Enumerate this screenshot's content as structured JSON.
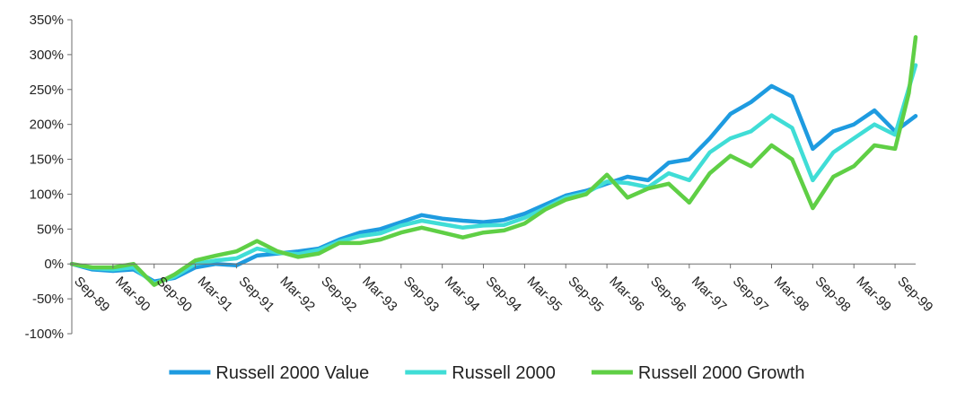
{
  "colors": {
    "value": "#1E9BE0",
    "russell2000": "#40DDD6",
    "growth": "#5FCF45",
    "axis": "#6E6E6E",
    "text": "#222222"
  },
  "chart_data": {
    "type": "line",
    "title": "",
    "xlabel": "",
    "ylabel": "",
    "ylim": [
      -100,
      350
    ],
    "y_unit": "%",
    "grid": false,
    "legend_position": "bottom",
    "y_ticks": [
      350,
      300,
      250,
      200,
      150,
      100,
      50,
      0,
      -50,
      -100
    ],
    "y_tick_labels": [
      "350%",
      "300%",
      "250%",
      "200%",
      "150%",
      "100%",
      "50%",
      "0%",
      "-50%",
      "-100%"
    ],
    "x_tick_labels": [
      "Sep-89",
      "Mar-90",
      "Sep-90",
      "Mar-91",
      "Sep-91",
      "Mar-92",
      "Sep-92",
      "Mar-93",
      "Sep-93",
      "Mar-94",
      "Sep-94",
      "Mar-95",
      "Sep-95",
      "Mar-96",
      "Sep-96",
      "Mar-97",
      "Sep-97",
      "Mar-98",
      "Sep-98",
      "Mar-99",
      "Sep-99"
    ],
    "x_ticks": [
      "1989-09",
      "1990-03",
      "1990-09",
      "1991-03",
      "1991-09",
      "1992-03",
      "1992-09",
      "1993-03",
      "1993-09",
      "1994-03",
      "1994-09",
      "1995-03",
      "1995-09",
      "1996-03",
      "1996-09",
      "1997-03",
      "1997-09",
      "1998-03",
      "1998-09",
      "1999-03",
      "1999-09"
    ],
    "x_range": [
      "1989-09",
      "1999-12"
    ],
    "series": [
      {
        "name": "Russell 2000 Value",
        "color_key": "value",
        "points": [
          [
            "1989-09",
            0
          ],
          [
            "1989-12",
            -8
          ],
          [
            "1990-03",
            -10
          ],
          [
            "1990-06",
            -8
          ],
          [
            "1990-09",
            -25
          ],
          [
            "1990-12",
            -20
          ],
          [
            "1991-03",
            -5
          ],
          [
            "1991-06",
            0
          ],
          [
            "1991-09",
            -2
          ],
          [
            "1991-12",
            12
          ],
          [
            "1992-03",
            15
          ],
          [
            "1992-06",
            18
          ],
          [
            "1992-09",
            22
          ],
          [
            "1992-12",
            35
          ],
          [
            "1993-03",
            45
          ],
          [
            "1993-06",
            50
          ],
          [
            "1993-09",
            60
          ],
          [
            "1993-12",
            70
          ],
          [
            "1994-03",
            65
          ],
          [
            "1994-06",
            62
          ],
          [
            "1994-09",
            60
          ],
          [
            "1994-12",
            63
          ],
          [
            "1995-03",
            72
          ],
          [
            "1995-06",
            85
          ],
          [
            "1995-09",
            98
          ],
          [
            "1995-12",
            105
          ],
          [
            "1996-03",
            115
          ],
          [
            "1996-06",
            125
          ],
          [
            "1996-09",
            120
          ],
          [
            "1996-12",
            145
          ],
          [
            "1997-03",
            150
          ],
          [
            "1997-06",
            180
          ],
          [
            "1997-09",
            215
          ],
          [
            "1997-12",
            232
          ],
          [
            "1998-03",
            255
          ],
          [
            "1998-06",
            240
          ],
          [
            "1998-09",
            165
          ],
          [
            "1998-12",
            190
          ],
          [
            "1999-03",
            200
          ],
          [
            "1999-06",
            220
          ],
          [
            "1999-09",
            190
          ],
          [
            "1999-12",
            212
          ]
        ]
      },
      {
        "name": "Russell 2000",
        "color_key": "russell2000",
        "points": [
          [
            "1989-09",
            0
          ],
          [
            "1989-12",
            -6
          ],
          [
            "1990-03",
            -8
          ],
          [
            "1990-06",
            -5
          ],
          [
            "1990-09",
            -28
          ],
          [
            "1990-12",
            -18
          ],
          [
            "1991-03",
            0
          ],
          [
            "1991-06",
            5
          ],
          [
            "1991-09",
            8
          ],
          [
            "1991-12",
            22
          ],
          [
            "1992-03",
            16
          ],
          [
            "1992-06",
            14
          ],
          [
            "1992-09",
            20
          ],
          [
            "1992-12",
            32
          ],
          [
            "1993-03",
            40
          ],
          [
            "1993-06",
            44
          ],
          [
            "1993-09",
            55
          ],
          [
            "1993-12",
            62
          ],
          [
            "1994-03",
            57
          ],
          [
            "1994-06",
            52
          ],
          [
            "1994-09",
            55
          ],
          [
            "1994-12",
            56
          ],
          [
            "1995-03",
            66
          ],
          [
            "1995-06",
            80
          ],
          [
            "1995-09",
            95
          ],
          [
            "1995-12",
            102
          ],
          [
            "1996-03",
            118
          ],
          [
            "1996-06",
            116
          ],
          [
            "1996-09",
            110
          ],
          [
            "1996-12",
            130
          ],
          [
            "1997-03",
            120
          ],
          [
            "1997-06",
            160
          ],
          [
            "1997-09",
            180
          ],
          [
            "1997-12",
            190
          ],
          [
            "1998-03",
            213
          ],
          [
            "1998-06",
            195
          ],
          [
            "1998-09",
            120
          ],
          [
            "1998-12",
            160
          ],
          [
            "1999-03",
            180
          ],
          [
            "1999-06",
            200
          ],
          [
            "1999-09",
            185
          ],
          [
            "1999-12",
            285
          ]
        ]
      },
      {
        "name": "Russell 2000 Growth",
        "color_key": "growth",
        "points": [
          [
            "1989-09",
            0
          ],
          [
            "1989-12",
            -5
          ],
          [
            "1990-03",
            -5
          ],
          [
            "1990-06",
            0
          ],
          [
            "1990-09",
            -30
          ],
          [
            "1990-12",
            -15
          ],
          [
            "1991-03",
            5
          ],
          [
            "1991-06",
            12
          ],
          [
            "1991-09",
            18
          ],
          [
            "1991-12",
            33
          ],
          [
            "1992-03",
            18
          ],
          [
            "1992-06",
            10
          ],
          [
            "1992-09",
            15
          ],
          [
            "1992-12",
            30
          ],
          [
            "1993-03",
            30
          ],
          [
            "1993-06",
            35
          ],
          [
            "1993-09",
            45
          ],
          [
            "1993-12",
            52
          ],
          [
            "1994-03",
            45
          ],
          [
            "1994-06",
            38
          ],
          [
            "1994-09",
            45
          ],
          [
            "1994-12",
            48
          ],
          [
            "1995-03",
            58
          ],
          [
            "1995-06",
            78
          ],
          [
            "1995-09",
            92
          ],
          [
            "1995-12",
            100
          ],
          [
            "1996-03",
            128
          ],
          [
            "1996-06",
            95
          ],
          [
            "1996-09",
            108
          ],
          [
            "1996-12",
            115
          ],
          [
            "1997-03",
            88
          ],
          [
            "1997-06",
            130
          ],
          [
            "1997-09",
            155
          ],
          [
            "1997-12",
            140
          ],
          [
            "1998-03",
            170
          ],
          [
            "1998-06",
            150
          ],
          [
            "1998-09",
            80
          ],
          [
            "1998-12",
            125
          ],
          [
            "1999-03",
            140
          ],
          [
            "1999-06",
            170
          ],
          [
            "1999-09",
            165
          ],
          [
            "1999-11",
            245
          ],
          [
            "1999-12",
            325
          ]
        ]
      }
    ]
  }
}
